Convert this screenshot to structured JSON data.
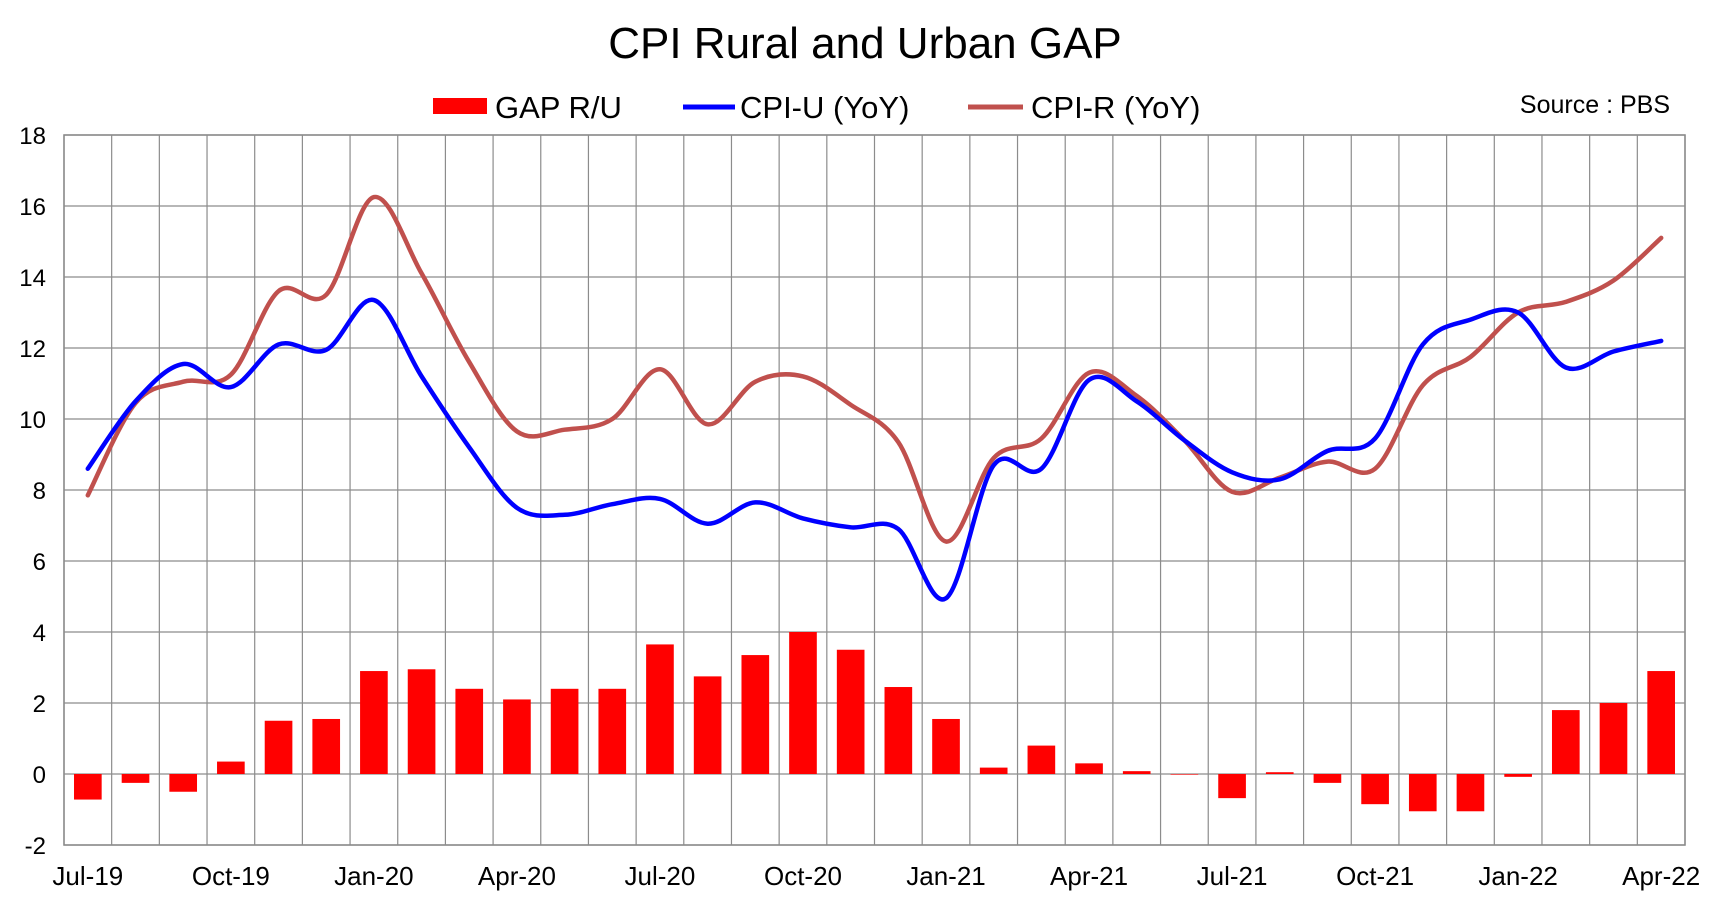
{
  "chart_data": {
    "type": "bar",
    "title": "CPI Rural and Urban GAP",
    "source": "Source : PBS",
    "x": [
      "Jul-19",
      "Aug-19",
      "Sep-19",
      "Oct-19",
      "Nov-19",
      "Dec-19",
      "Jan-20",
      "Feb-20",
      "Mar-20",
      "Apr-20",
      "May-20",
      "Jun-20",
      "Jul-20",
      "Aug-20",
      "Sep-20",
      "Oct-20",
      "Nov-20",
      "Dec-20",
      "Jan-21",
      "Feb-21",
      "Mar-21",
      "Apr-21",
      "May-21",
      "Jun-21",
      "Jul-21",
      "Aug-21",
      "Sep-21",
      "Oct-21",
      "Nov-21",
      "Dec-21",
      "Jan-22",
      "Feb-22",
      "Mar-22",
      "Apr-22"
    ],
    "x_tick_labels": [
      "Jul-19",
      "Oct-19",
      "Jan-20",
      "Apr-20",
      "Jul-20",
      "Oct-20",
      "Jan-21",
      "Apr-21",
      "Jul-21",
      "Oct-21",
      "Jan-22",
      "Apr-22"
    ],
    "y_ticks": [
      "-2",
      "0",
      "2",
      "4",
      "6",
      "8",
      "10",
      "12",
      "14",
      "16",
      "18"
    ],
    "ylim": [
      -2,
      18
    ],
    "grid": true,
    "legend_position": "top",
    "series": [
      {
        "name": "GAP R/U",
        "kind": "bar",
        "color": "#ff0000",
        "values": [
          -0.72,
          -0.25,
          -0.5,
          0.35,
          1.5,
          1.55,
          2.9,
          2.95,
          2.4,
          2.1,
          2.4,
          2.4,
          3.65,
          2.75,
          3.35,
          4.0,
          3.5,
          2.45,
          1.55,
          0.18,
          0.8,
          0.3,
          0.08,
          0.0,
          -0.68,
          0.05,
          -0.25,
          -0.85,
          -1.05,
          -1.05,
          -0.08,
          1.8,
          2.0,
          2.9
        ]
      },
      {
        "name": "CPI-U (YoY)",
        "kind": "line",
        "color": "#0000ff",
        "values": [
          8.6,
          10.5,
          11.55,
          10.9,
          12.1,
          11.95,
          13.35,
          11.2,
          9.2,
          7.5,
          7.3,
          7.6,
          7.75,
          7.05,
          7.65,
          7.2,
          6.95,
          6.9,
          4.95,
          8.7,
          8.6,
          11.1,
          10.5,
          9.4,
          8.5,
          8.3,
          9.1,
          9.45,
          12.1,
          12.8,
          13.0,
          11.45,
          11.9,
          12.2
        ]
      },
      {
        "name": "CPI-R (YoY)",
        "kind": "line",
        "color": "#c0504d",
        "values": [
          7.85,
          10.45,
          11.05,
          11.25,
          13.6,
          13.5,
          16.25,
          14.1,
          11.6,
          9.65,
          9.7,
          10.0,
          11.4,
          9.85,
          11.05,
          11.2,
          10.4,
          9.35,
          6.55,
          8.9,
          9.45,
          11.3,
          10.65,
          9.4,
          7.95,
          8.35,
          8.8,
          8.6,
          10.95,
          11.75,
          13.0,
          13.3,
          13.9,
          15.1
        ]
      }
    ]
  }
}
